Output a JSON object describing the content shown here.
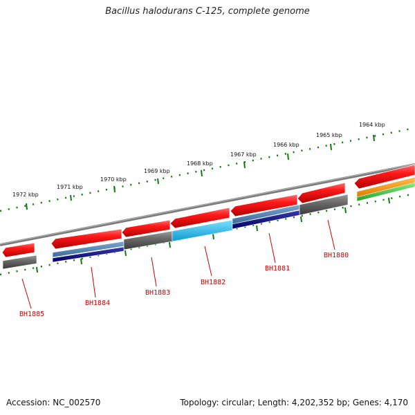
{
  "title": "Bacillus halodurans C-125, complete genome",
  "footer": {
    "accession": "Accession: NC_002570",
    "summary": "Topology: circular; Length: 4,202,352 bp; Genes: 4,170"
  },
  "scale_ticks": [
    "1972 kbp",
    "1971 kbp",
    "1970 kbp",
    "1969 kbp",
    "1968 kbp",
    "1967 kbp",
    "1966 kbp",
    "1965 kbp",
    "1964 kbp"
  ],
  "gene_labels": [
    "BH1885",
    "BH1884",
    "BH1883",
    "BH1882",
    "BH1881",
    "BH1880"
  ],
  "colors": {
    "backbone": "#8a8a8a",
    "gene_red": "#ee1111",
    "gene_gray": "#666666",
    "steel_blue": "#4a7fb0",
    "navy": "#0a0a80",
    "cyan": "#22bbee",
    "orange": "#ff9900",
    "green": "#33cc33",
    "scale_green": "#117711",
    "label_red": "#cc0000"
  }
}
